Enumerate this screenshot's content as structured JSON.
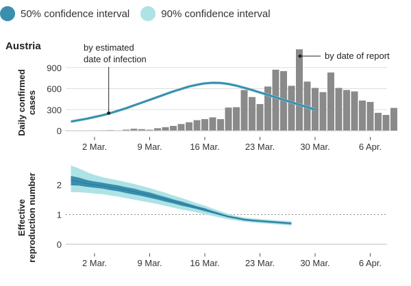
{
  "legend": {
    "items": [
      {
        "label": "50% confidence interval",
        "color": "#3a8faf"
      },
      {
        "label": "90% confidence interval",
        "color": "#aee3e6"
      }
    ]
  },
  "chart_data": [
    {
      "type": "bar",
      "title": "Austria",
      "ylabel": "Daily confirmed\ncases",
      "ylim": [
        0,
        1050
      ],
      "yticks": [
        0,
        300,
        600,
        900
      ],
      "grid": "horizontal",
      "colors": {
        "bars": "#8a8a8a",
        "line": "#3a8faf",
        "band90": "#aee3e6"
      },
      "x_ticks": [
        {
          "day": 2,
          "label": "2 Mar."
        },
        {
          "day": 9,
          "label": "9 Mar."
        },
        {
          "day": 16,
          "label": "16 Mar."
        },
        {
          "day": 23,
          "label": "23 Mar."
        },
        {
          "day": 30,
          "label": "30 Mar."
        },
        {
          "day": 37,
          "label": "6 Apr."
        }
      ],
      "series": [
        {
          "type": "bar",
          "x_start_day": -2,
          "values": [
            2,
            2,
            3,
            3,
            5,
            6,
            8,
            5,
            15,
            28,
            22,
            14,
            35,
            50,
            68,
            95,
            120,
            150,
            165,
            190,
            165,
            330,
            335,
            580,
            480,
            380,
            630,
            870,
            850,
            640,
            1160,
            700,
            610,
            550,
            830,
            610,
            580,
            560,
            430,
            410,
            255,
            225,
            325
          ]
        },
        {
          "type": "line",
          "x_start_day": -1,
          "values": [
            130,
            150,
            170,
            195,
            220,
            250,
            285,
            320,
            360,
            400,
            440,
            480,
            520,
            560,
            595,
            630,
            655,
            675,
            683,
            680,
            666,
            642,
            612,
            580,
            545,
            510,
            475,
            440,
            405,
            370,
            335,
            300
          ],
          "band90_half_width": 20
        }
      ],
      "annotations": [
        {
          "text": "by estimated\ndate of infection",
          "day": 3.8,
          "value": 250
        },
        {
          "text": "by date of report",
          "day": 28,
          "value": 900
        }
      ]
    },
    {
      "type": "area",
      "ylabel": "Effective\nreproduction number",
      "ylim": [
        0,
        2.6
      ],
      "yticks": [
        0,
        1,
        2
      ],
      "reference_line": 1,
      "x_ticks": [
        {
          "day": 2,
          "label": "2 Mar."
        },
        {
          "day": 9,
          "label": "9 Mar."
        },
        {
          "day": 16,
          "label": "16 Mar."
        },
        {
          "day": 23,
          "label": "23 Mar."
        },
        {
          "day": 30,
          "label": "30 Mar."
        },
        {
          "day": 37,
          "label": "6 Apr."
        }
      ],
      "series": [
        {
          "name": "median",
          "x_start_day": -1,
          "values": [
            2.15,
            2.1,
            2.04,
            2.0,
            1.97,
            1.92,
            1.88,
            1.82,
            1.77,
            1.71,
            1.65,
            1.58,
            1.51,
            1.44,
            1.37,
            1.3,
            1.23,
            1.16,
            1.08,
            1.0,
            0.93,
            0.88,
            0.83,
            0.8,
            0.78,
            0.76,
            0.74,
            0.72,
            0.7
          ],
          "ci50": [
            [
              1.98,
              2.3
            ],
            [
              1.97,
              2.24
            ],
            [
              1.93,
              2.16
            ],
            [
              1.9,
              2.11
            ],
            [
              1.87,
              2.07
            ],
            [
              1.82,
              2.02
            ],
            [
              1.78,
              1.98
            ],
            [
              1.72,
              1.92
            ],
            [
              1.67,
              1.87
            ],
            [
              1.62,
              1.8
            ],
            [
              1.56,
              1.74
            ],
            [
              1.5,
              1.66
            ],
            [
              1.43,
              1.59
            ],
            [
              1.37,
              1.51
            ],
            [
              1.3,
              1.44
            ],
            [
              1.24,
              1.36
            ],
            [
              1.18,
              1.28
            ],
            [
              1.11,
              1.21
            ],
            [
              1.04,
              1.12
            ],
            [
              0.97,
              1.04
            ],
            [
              0.9,
              0.96
            ],
            [
              0.85,
              0.91
            ],
            [
              0.8,
              0.86
            ],
            [
              0.77,
              0.83
            ],
            [
              0.75,
              0.81
            ],
            [
              0.73,
              0.79
            ],
            [
              0.71,
              0.77
            ],
            [
              0.69,
              0.75
            ],
            [
              0.67,
              0.73
            ]
          ],
          "ci90": [
            [
              1.75,
              2.65
            ],
            [
              1.75,
              2.55
            ],
            [
              1.73,
              2.43
            ],
            [
              1.7,
              2.33
            ],
            [
              1.68,
              2.26
            ],
            [
              1.64,
              2.2
            ],
            [
              1.6,
              2.15
            ],
            [
              1.55,
              2.09
            ],
            [
              1.5,
              2.03
            ],
            [
              1.45,
              1.96
            ],
            [
              1.4,
              1.89
            ],
            [
              1.35,
              1.81
            ],
            [
              1.29,
              1.73
            ],
            [
              1.23,
              1.64
            ],
            [
              1.17,
              1.56
            ],
            [
              1.12,
              1.47
            ],
            [
              1.07,
              1.38
            ],
            [
              1.01,
              1.3
            ],
            [
              0.95,
              1.2
            ],
            [
              0.89,
              1.11
            ],
            [
              0.84,
              1.02
            ],
            [
              0.8,
              0.95
            ],
            [
              0.76,
              0.9
            ],
            [
              0.73,
              0.87
            ],
            [
              0.71,
              0.85
            ],
            [
              0.69,
              0.83
            ],
            [
              0.67,
              0.81
            ],
            [
              0.65,
              0.79
            ],
            [
              0.63,
              0.77
            ]
          ]
        }
      ]
    }
  ]
}
